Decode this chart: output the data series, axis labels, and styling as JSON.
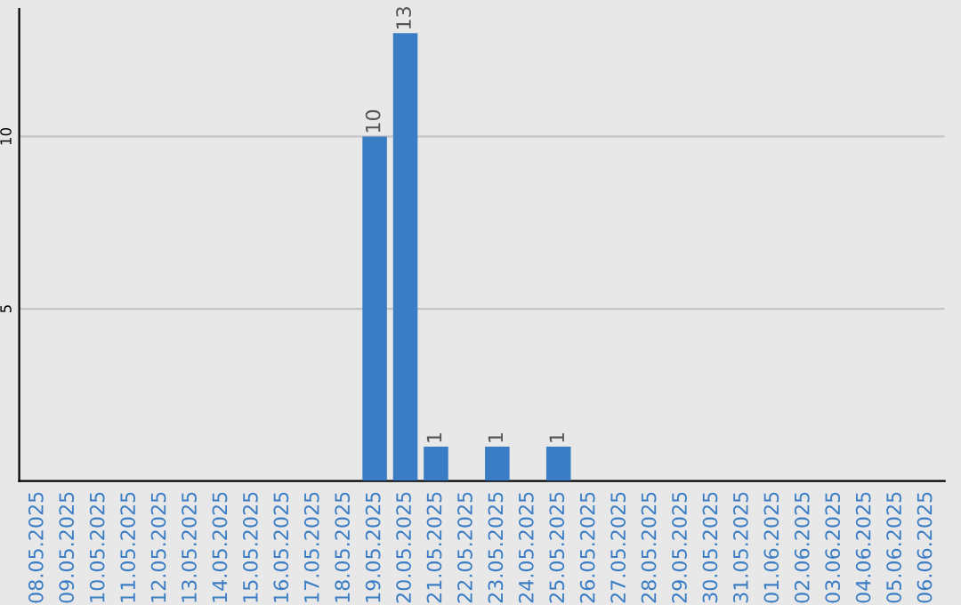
{
  "chart_data": {
    "type": "bar",
    "categories": [
      "08.05.2025",
      "09.05.2025",
      "10.05.2025",
      "11.05.2025",
      "12.05.2025",
      "13.05.2025",
      "14.05.2025",
      "15.05.2025",
      "16.05.2025",
      "17.05.2025",
      "18.05.2025",
      "19.05.2025",
      "20.05.2025",
      "21.05.2025",
      "22.05.2025",
      "23.05.2025",
      "24.05.2025",
      "25.05.2025",
      "26.05.2025",
      "27.05.2025",
      "28.05.2025",
      "29.05.2025",
      "30.05.2025",
      "31.05.2025",
      "01.06.2025",
      "02.06.2025",
      "03.06.2025",
      "04.06.2025",
      "05.06.2025",
      "06.06.2025"
    ],
    "values": [
      0,
      0,
      0,
      0,
      0,
      0,
      0,
      0,
      0,
      0,
      0,
      10,
      13,
      1,
      0,
      1,
      0,
      1,
      0,
      0,
      0,
      0,
      0,
      0,
      0,
      0,
      0,
      0,
      0,
      0
    ],
    "value_labels": [
      null,
      null,
      null,
      null,
      null,
      null,
      null,
      null,
      null,
      null,
      null,
      "10",
      "13",
      "1",
      null,
      "1",
      null,
      "1",
      null,
      null,
      null,
      null,
      null,
      null,
      null,
      null,
      null,
      null,
      null,
      null
    ],
    "color": "#3b7dc4",
    "ylim": [
      0,
      13.7
    ],
    "yticks": [
      5,
      10
    ],
    "grid": "y"
  }
}
